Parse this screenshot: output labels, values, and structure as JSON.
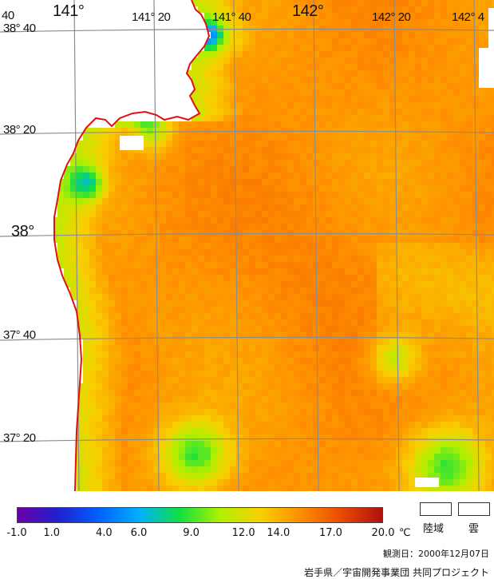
{
  "map": {
    "lon_labels": [
      "141°",
      "141° 20",
      "141° 40",
      "142°",
      "142° 20",
      "142° 4"
    ],
    "lat_labels": [
      "38° 40",
      "38° 20",
      "38°",
      "37° 40",
      "37° 20"
    ],
    "corner_label": "40",
    "coastline_color": "#e01010",
    "gridline_color": "#8c8c8c"
  },
  "legend": {
    "min": -1.0,
    "max": 20.0,
    "ticks": [
      "-1.0",
      "1.0",
      "4.0",
      "6.0",
      "9.0",
      "12.0",
      "14.0",
      "17.0",
      "20.0"
    ],
    "tick_values": [
      -1,
      1,
      4,
      6,
      9,
      12,
      14,
      17,
      20
    ],
    "unit": "℃",
    "colors": [
      "#6a00a8",
      "#2020d0",
      "#0060ff",
      "#00b0ff",
      "#10e040",
      "#b0f000",
      "#f8d000",
      "#ff8c00",
      "#e84a00",
      "#b01010"
    ],
    "land_label": "陸域",
    "cloud_label": "雲"
  },
  "observation_date": "観測日：2000年12月07日",
  "credit": "岩手県／宇宙開発事業団 共同プロジェクト"
}
